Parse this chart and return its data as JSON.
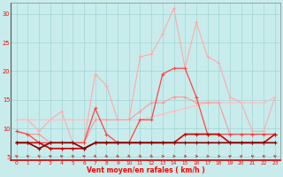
{
  "x": [
    0,
    1,
    2,
    3,
    4,
    5,
    6,
    7,
    8,
    9,
    10,
    11,
    12,
    13,
    14,
    15,
    16,
    17,
    18,
    19,
    20,
    21,
    22,
    23
  ],
  "line_light1": [
    11.5,
    11.5,
    11.5,
    11.5,
    11.5,
    11.5,
    11.5,
    11.5,
    11.5,
    11.5,
    11.5,
    11.5,
    12.0,
    12.5,
    13.0,
    13.5,
    14.0,
    14.5,
    14.5,
    14.5,
    14.5,
    14.5,
    14.5,
    15.5
  ],
  "line_light2": [
    9.5,
    9.0,
    9.0,
    7.5,
    7.5,
    7.5,
    7.5,
    11.5,
    11.5,
    11.5,
    11.5,
    13.0,
    14.5,
    14.5,
    15.5,
    15.5,
    14.5,
    14.5,
    14.5,
    9.0,
    9.0,
    9.0,
    9.0,
    9.0
  ],
  "line_dark1": [
    7.5,
    7.5,
    7.5,
    6.5,
    6.5,
    6.5,
    6.5,
    7.5,
    7.5,
    7.5,
    7.5,
    7.5,
    7.5,
    7.5,
    7.5,
    9.0,
    9.0,
    9.0,
    9.0,
    7.5,
    7.5,
    7.5,
    7.5,
    9.0
  ],
  "line_dark2": [
    7.5,
    7.5,
    6.5,
    7.5,
    7.5,
    7.5,
    6.5,
    7.5,
    7.5,
    7.5,
    7.5,
    7.5,
    7.5,
    7.5,
    7.5,
    7.5,
    7.5,
    7.5,
    7.5,
    7.5,
    7.5,
    7.5,
    7.5,
    7.5
  ],
  "line_peak_light": [
    11.5,
    11.5,
    9.5,
    11.5,
    13.0,
    7.5,
    7.5,
    19.5,
    17.5,
    11.5,
    11.5,
    22.5,
    23.0,
    26.5,
    31.0,
    20.5,
    28.5,
    22.5,
    21.5,
    15.5,
    14.5,
    9.5,
    9.5,
    15.5
  ],
  "line_peak_med": [
    9.5,
    9.0,
    7.5,
    7.5,
    7.5,
    7.5,
    7.5,
    13.5,
    9.0,
    7.5,
    7.5,
    11.5,
    11.5,
    19.5,
    20.5,
    20.5,
    15.5,
    9.0,
    9.0,
    9.0,
    9.0,
    9.0,
    9.0,
    9.0
  ],
  "color_light1": "#ffbbbb",
  "color_light2": "#ff9999",
  "color_dark1": "#cc0000",
  "color_dark2": "#880000",
  "color_peak_light": "#ffaaaa",
  "color_peak_med": "#ff4444",
  "bg_color": "#c8ecec",
  "grid_color": "#a0d4d4",
  "xlabel": "Vent moyen/en rafales ( km/h )",
  "ylabel_ticks": [
    5,
    10,
    15,
    20,
    25,
    30
  ],
  "xlim": [
    -0.5,
    23.5
  ],
  "ylim": [
    4.5,
    32
  ],
  "arrow_angles": [
    225,
    225,
    225,
    225,
    225,
    225,
    225,
    45,
    45,
    45,
    45,
    45,
    45,
    90,
    90,
    90,
    90,
    90,
    90,
    135,
    135,
    225,
    225,
    225
  ]
}
